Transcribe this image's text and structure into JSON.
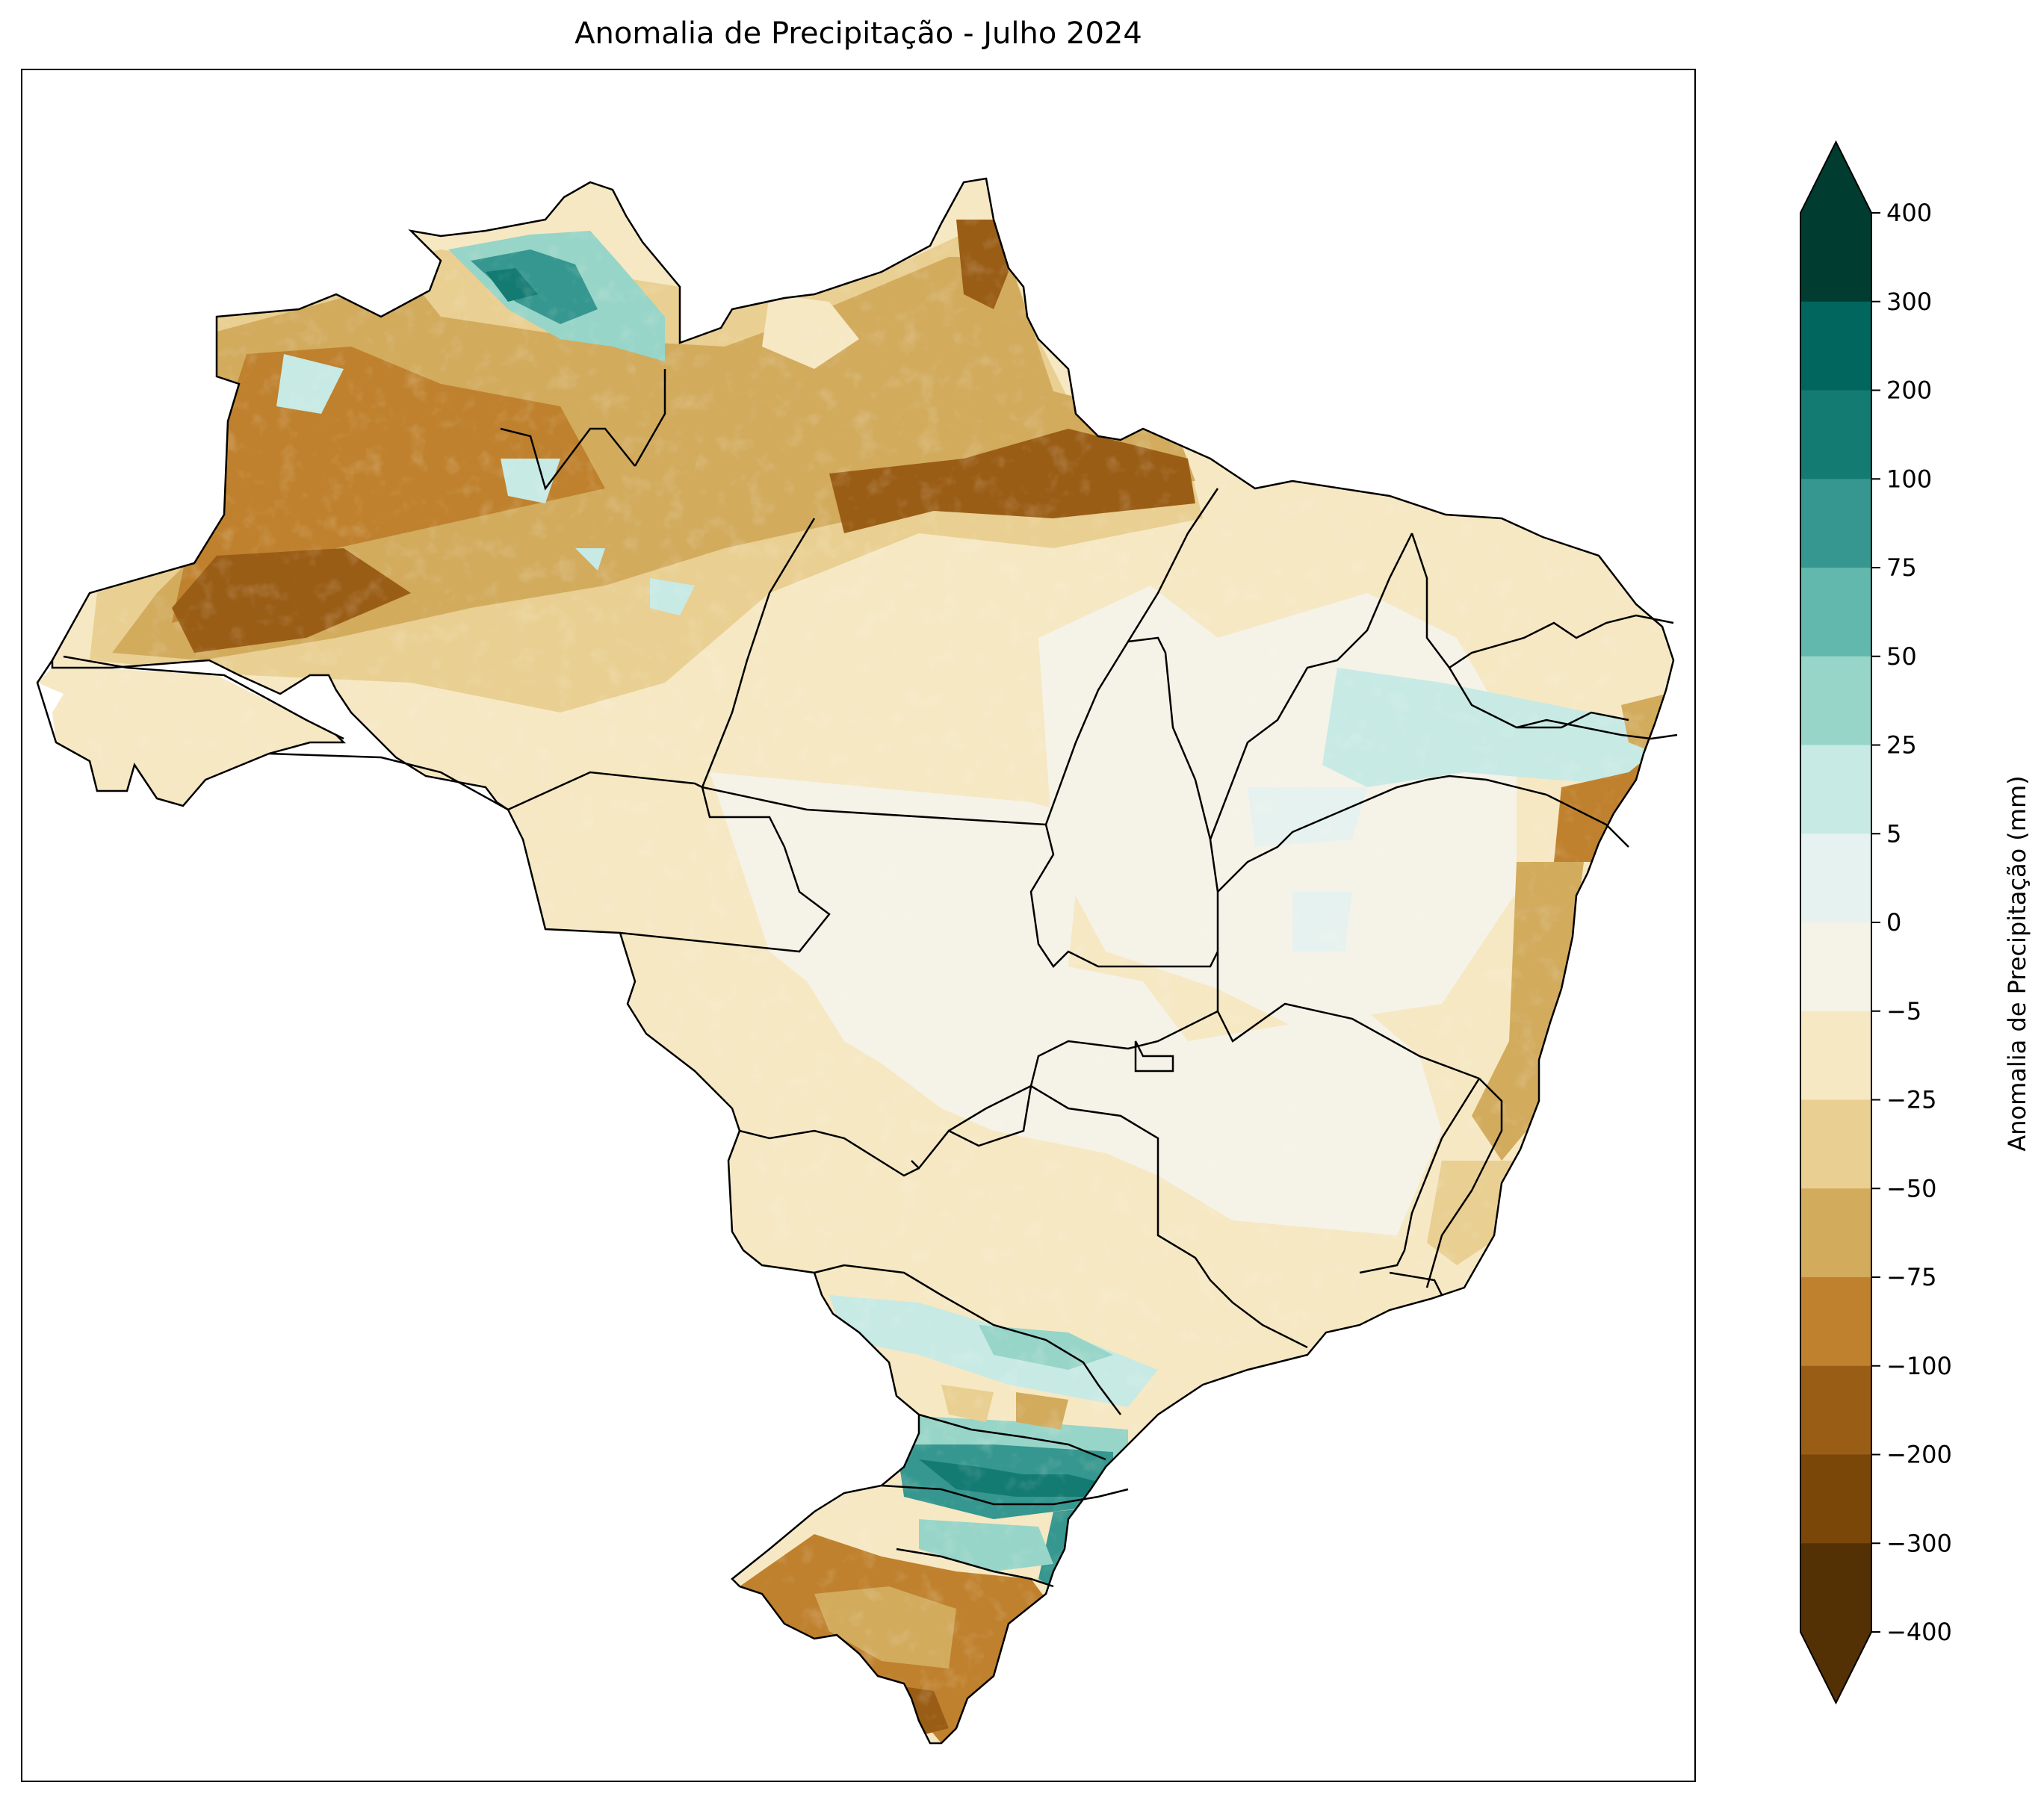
{
  "title": "Anomalia de Precipitação - Julho 2024",
  "colorbar": {
    "label": "Anomalia de Precipitação (mm)",
    "ticks": [
      "400",
      "300",
      "200",
      "100",
      "75",
      "50",
      "25",
      "5",
      "0",
      "−5",
      "−25",
      "−50",
      "−75",
      "−100",
      "−200",
      "−300",
      "−400"
    ],
    "colors_top_to_bottom": [
      "#003c30",
      "#01665e",
      "#147b73",
      "#35978f",
      "#62b8ac",
      "#97d5c8",
      "#c7eae5",
      "#e6f2ef",
      "#f5f2e8",
      "#f6e8c3",
      "#e9cf91",
      "#d2ab5d",
      "#bf812d",
      "#9a5d16",
      "#7a4709",
      "#543005"
    ],
    "extend": "both"
  },
  "map": {
    "region": "Brasil",
    "palette": "BrBG",
    "unit": "mm"
  }
}
